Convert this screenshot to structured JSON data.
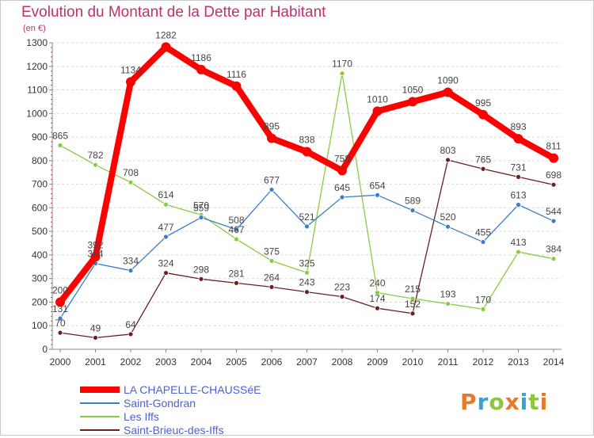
{
  "page": {
    "title": "Evolution du Montant de la Dette par Habitant",
    "unit": "(en €)"
  },
  "brand": {
    "text": "Proxiti",
    "letters": [
      {
        "ch": "P",
        "color": "#e8792a"
      },
      {
        "ch": "r",
        "color": "#3aa0d8"
      },
      {
        "ch": "o",
        "color": "#8cc540"
      },
      {
        "ch": "x",
        "color": "#e8792a"
      },
      {
        "ch": "i",
        "color": "#3aa0d8"
      },
      {
        "ch": "t",
        "color": "#8cc540"
      },
      {
        "ch": "i",
        "color": "#e8792a"
      }
    ]
  },
  "chart_data": {
    "type": "line",
    "title": "Evolution du Montant de la Dette par Habitant",
    "ylabel": "(en €)",
    "xlabel": "",
    "x": [
      "2000",
      "2001",
      "2002",
      "2003",
      "2004",
      "2005",
      "2006",
      "2007",
      "2008",
      "2009",
      "2010",
      "2011",
      "2012",
      "2013",
      "2014"
    ],
    "ylim": [
      0,
      1300
    ],
    "yticks": [
      0,
      100,
      200,
      300,
      400,
      500,
      600,
      700,
      800,
      900,
      1000,
      1100,
      1200,
      1300
    ],
    "grid": "horizontal dashed",
    "legend": "bottom-left",
    "series": [
      {
        "name": "LA CHAPELLE-CHAUSSéE",
        "color": "#ff0000",
        "values": [
          200,
          392,
          1134,
          1282,
          1186,
          1116,
          895,
          838,
          758,
          1010,
          1050,
          1090,
          995,
          893,
          811
        ]
      },
      {
        "name": "Saint-Gondran",
        "color": "#3a7fc4",
        "values": [
          131,
          364,
          334,
          477,
          559,
          508,
          677,
          521,
          645,
          654,
          589,
          520,
          455,
          613,
          544
        ]
      },
      {
        "name": "Les Iffs",
        "color": "#88cc44",
        "values": [
          865,
          782,
          708,
          614,
          570,
          467,
          375,
          325,
          1170,
          240,
          215,
          193,
          170,
          413,
          384
        ]
      },
      {
        "name": "Saint-Brieuc-des-Iffs",
        "color": "#6b1f1f",
        "values": [
          70,
          49,
          64,
          324,
          298,
          281,
          264,
          243,
          223,
          174,
          152,
          803,
          765,
          731,
          698
        ]
      }
    ]
  }
}
